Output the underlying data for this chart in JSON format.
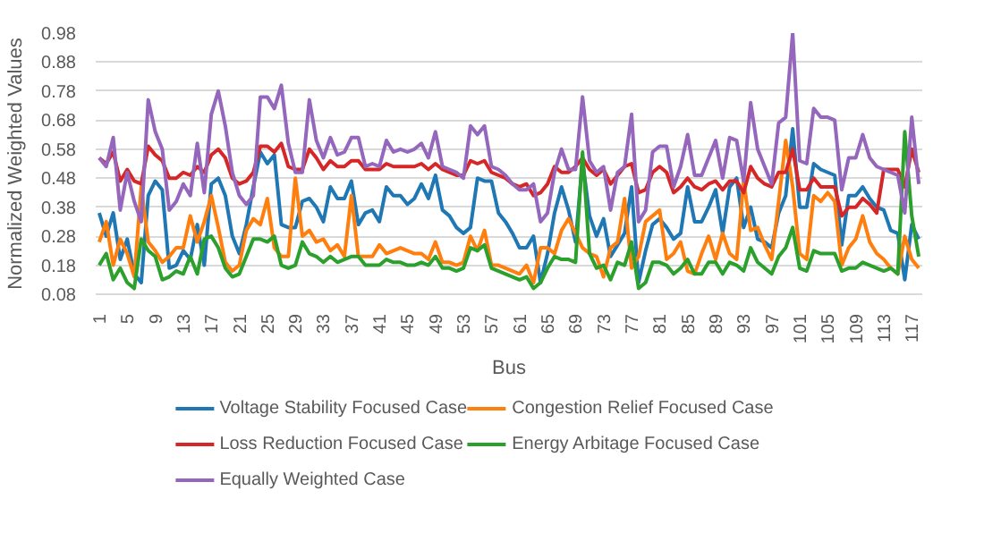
{
  "chart_data": {
    "type": "line",
    "xlabel": "Bus",
    "ylabel": "Normalized Weighted Values",
    "x": [
      1,
      2,
      3,
      4,
      5,
      6,
      7,
      8,
      9,
      10,
      11,
      12,
      13,
      14,
      15,
      16,
      17,
      18,
      19,
      20,
      21,
      22,
      23,
      24,
      25,
      26,
      27,
      28,
      29,
      30,
      31,
      32,
      33,
      34,
      35,
      36,
      37,
      38,
      39,
      40,
      41,
      42,
      43,
      44,
      45,
      46,
      47,
      48,
      49,
      50,
      51,
      52,
      53,
      54,
      55,
      56,
      57,
      58,
      59,
      60,
      61,
      62,
      63,
      64,
      65,
      66,
      67,
      68,
      69,
      70,
      71,
      72,
      73,
      74,
      75,
      76,
      77,
      78,
      79,
      80,
      81,
      82,
      83,
      84,
      85,
      86,
      87,
      88,
      89,
      90,
      91,
      92,
      93,
      94,
      95,
      96,
      97,
      98,
      99,
      100,
      101,
      102,
      103,
      104,
      105,
      106,
      107,
      108,
      109,
      110,
      111,
      112,
      113,
      114,
      115,
      116,
      117,
      118
    ],
    "xlim": [
      0.5,
      118.5
    ],
    "xticks": [
      1,
      5,
      9,
      13,
      17,
      21,
      25,
      29,
      33,
      37,
      41,
      45,
      49,
      53,
      57,
      61,
      65,
      69,
      73,
      77,
      81,
      85,
      89,
      93,
      97,
      101,
      105,
      109,
      113,
      117
    ],
    "ylim": [
      0.08,
      0.98
    ],
    "yticks": [
      0.08,
      0.18,
      0.28,
      0.38,
      0.48,
      0.58,
      0.68,
      0.78,
      0.88,
      0.98
    ],
    "grid": "y",
    "legend": "bottom",
    "line_style": "solid",
    "series": [
      {
        "name": "Voltage Stability Focused Case",
        "color": "#1f77b4",
        "values": [
          0.36,
          0.28,
          0.36,
          0.2,
          0.27,
          0.15,
          0.12,
          0.42,
          0.47,
          0.44,
          0.17,
          0.18,
          0.23,
          0.2,
          0.32,
          0.18,
          0.46,
          0.48,
          0.42,
          0.28,
          0.22,
          0.32,
          0.45,
          0.57,
          0.53,
          0.56,
          0.32,
          0.31,
          0.31,
          0.4,
          0.41,
          0.38,
          0.33,
          0.45,
          0.41,
          0.41,
          0.47,
          0.32,
          0.36,
          0.37,
          0.33,
          0.45,
          0.42,
          0.42,
          0.39,
          0.41,
          0.46,
          0.41,
          0.49,
          0.37,
          0.35,
          0.31,
          0.29,
          0.31,
          0.48,
          0.47,
          0.47,
          0.36,
          0.33,
          0.29,
          0.24,
          0.24,
          0.28,
          0.12,
          0.22,
          0.36,
          0.45,
          0.37,
          0.26,
          0.54,
          0.35,
          0.28,
          0.34,
          0.21,
          0.25,
          0.29,
          0.45,
          0.12,
          0.23,
          0.32,
          0.34,
          0.31,
          0.27,
          0.29,
          0.45,
          0.33,
          0.33,
          0.38,
          0.44,
          0.29,
          0.45,
          0.48,
          0.31,
          0.38,
          0.27,
          0.26,
          0.24,
          0.36,
          0.42,
          0.65,
          0.38,
          0.38,
          0.53,
          0.51,
          0.5,
          0.49,
          0.25,
          0.42,
          0.42,
          0.45,
          0.41,
          0.38,
          0.37,
          0.3,
          0.29,
          0.13,
          0.32,
          0.27
        ]
      },
      {
        "name": "Congestion Relief Focused Case",
        "color": "#ff7f0e",
        "values": [
          0.26,
          0.33,
          0.18,
          0.27,
          0.22,
          0.14,
          0.45,
          0.26,
          0.23,
          0.19,
          0.21,
          0.24,
          0.24,
          0.35,
          0.26,
          0.33,
          0.42,
          0.31,
          0.19,
          0.16,
          0.18,
          0.3,
          0.34,
          0.32,
          0.41,
          0.24,
          0.21,
          0.21,
          0.48,
          0.28,
          0.3,
          0.26,
          0.27,
          0.23,
          0.25,
          0.21,
          0.42,
          0.21,
          0.21,
          0.21,
          0.25,
          0.22,
          0.23,
          0.24,
          0.23,
          0.22,
          0.22,
          0.2,
          0.26,
          0.19,
          0.19,
          0.18,
          0.19,
          0.28,
          0.23,
          0.3,
          0.18,
          0.18,
          0.17,
          0.16,
          0.15,
          0.18,
          0.12,
          0.24,
          0.24,
          0.22,
          0.3,
          0.34,
          0.29,
          0.24,
          0.22,
          0.21,
          0.14,
          0.24,
          0.26,
          0.41,
          0.17,
          0.21,
          0.33,
          0.35,
          0.37,
          0.2,
          0.22,
          0.26,
          0.16,
          0.15,
          0.22,
          0.28,
          0.2,
          0.29,
          0.22,
          0.2,
          0.47,
          0.3,
          0.31,
          0.25,
          0.2,
          0.4,
          0.61,
          0.45,
          0.22,
          0.2,
          0.42,
          0.4,
          0.43,
          0.4,
          0.18,
          0.24,
          0.27,
          0.35,
          0.26,
          0.22,
          0.2,
          0.17,
          0.15,
          0.28,
          0.2,
          0.17
        ]
      },
      {
        "name": "Loss Reduction Focused Case",
        "color": "#d62728",
        "values": [
          0.55,
          0.53,
          0.57,
          0.47,
          0.51,
          0.47,
          0.46,
          0.59,
          0.56,
          0.54,
          0.48,
          0.48,
          0.5,
          0.49,
          0.52,
          0.5,
          0.56,
          0.58,
          0.55,
          0.48,
          0.46,
          0.47,
          0.5,
          0.59,
          0.59,
          0.57,
          0.6,
          0.52,
          0.51,
          0.51,
          0.58,
          0.55,
          0.51,
          0.54,
          0.52,
          0.52,
          0.54,
          0.54,
          0.51,
          0.51,
          0.51,
          0.53,
          0.52,
          0.52,
          0.52,
          0.52,
          0.53,
          0.51,
          0.53,
          0.51,
          0.5,
          0.49,
          0.49,
          0.54,
          0.53,
          0.54,
          0.5,
          0.49,
          0.48,
          0.46,
          0.45,
          0.46,
          0.42,
          0.43,
          0.46,
          0.52,
          0.5,
          0.5,
          0.52,
          0.55,
          0.51,
          0.49,
          0.51,
          0.46,
          0.49,
          0.52,
          0.53,
          0.43,
          0.44,
          0.5,
          0.52,
          0.5,
          0.43,
          0.45,
          0.48,
          0.45,
          0.44,
          0.46,
          0.47,
          0.44,
          0.47,
          0.47,
          0.43,
          0.52,
          0.48,
          0.46,
          0.45,
          0.5,
          0.5,
          0.58,
          0.44,
          0.44,
          0.48,
          0.45,
          0.45,
          0.45,
          0.35,
          0.38,
          0.38,
          0.41,
          0.39,
          0.36,
          0.51,
          0.51,
          0.51,
          0.45,
          0.58,
          0.5
        ]
      },
      {
        "name": "Energy Arbitage Focused Case",
        "color": "#2ca02c",
        "values": [
          0.18,
          0.22,
          0.13,
          0.17,
          0.12,
          0.1,
          0.27,
          0.23,
          0.21,
          0.13,
          0.14,
          0.16,
          0.15,
          0.21,
          0.15,
          0.27,
          0.28,
          0.24,
          0.17,
          0.14,
          0.15,
          0.21,
          0.27,
          0.27,
          0.26,
          0.28,
          0.18,
          0.17,
          0.18,
          0.26,
          0.22,
          0.21,
          0.19,
          0.21,
          0.19,
          0.2,
          0.21,
          0.21,
          0.18,
          0.18,
          0.18,
          0.2,
          0.19,
          0.19,
          0.18,
          0.18,
          0.19,
          0.18,
          0.21,
          0.17,
          0.17,
          0.16,
          0.17,
          0.24,
          0.23,
          0.25,
          0.17,
          0.16,
          0.15,
          0.14,
          0.13,
          0.14,
          0.1,
          0.12,
          0.17,
          0.21,
          0.2,
          0.2,
          0.19,
          0.57,
          0.22,
          0.17,
          0.18,
          0.13,
          0.19,
          0.18,
          0.26,
          0.1,
          0.12,
          0.19,
          0.19,
          0.18,
          0.15,
          0.17,
          0.2,
          0.15,
          0.15,
          0.19,
          0.19,
          0.15,
          0.19,
          0.18,
          0.16,
          0.24,
          0.19,
          0.17,
          0.15,
          0.21,
          0.24,
          0.31,
          0.17,
          0.16,
          0.23,
          0.22,
          0.22,
          0.22,
          0.16,
          0.17,
          0.17,
          0.19,
          0.18,
          0.17,
          0.16,
          0.17,
          0.15,
          0.64,
          0.35,
          0.21
        ]
      },
      {
        "name": "Equally Weighted Case",
        "color": "#9467bd",
        "values": [
          0.55,
          0.52,
          0.62,
          0.37,
          0.5,
          0.4,
          0.33,
          0.75,
          0.64,
          0.58,
          0.37,
          0.4,
          0.46,
          0.42,
          0.6,
          0.43,
          0.7,
          0.78,
          0.66,
          0.5,
          0.42,
          0.39,
          0.42,
          0.76,
          0.76,
          0.72,
          0.8,
          0.6,
          0.5,
          0.5,
          0.75,
          0.61,
          0.55,
          0.62,
          0.56,
          0.57,
          0.62,
          0.62,
          0.52,
          0.53,
          0.52,
          0.61,
          0.57,
          0.58,
          0.57,
          0.58,
          0.6,
          0.55,
          0.64,
          0.52,
          0.51,
          0.5,
          0.48,
          0.66,
          0.63,
          0.66,
          0.52,
          0.51,
          0.49,
          0.46,
          0.44,
          0.44,
          0.46,
          0.33,
          0.36,
          0.5,
          0.58,
          0.51,
          0.51,
          0.76,
          0.54,
          0.5,
          0.52,
          0.37,
          0.5,
          0.52,
          0.7,
          0.33,
          0.37,
          0.57,
          0.59,
          0.59,
          0.45,
          0.52,
          0.63,
          0.49,
          0.49,
          0.55,
          0.61,
          0.48,
          0.62,
          0.61,
          0.47,
          0.74,
          0.58,
          0.52,
          0.46,
          0.67,
          0.69,
          0.98,
          0.54,
          0.53,
          0.72,
          0.69,
          0.69,
          0.68,
          0.44,
          0.55,
          0.55,
          0.63,
          0.55,
          0.52,
          0.51,
          0.5,
          0.49,
          0.36,
          0.69,
          0.46
        ]
      }
    ]
  }
}
